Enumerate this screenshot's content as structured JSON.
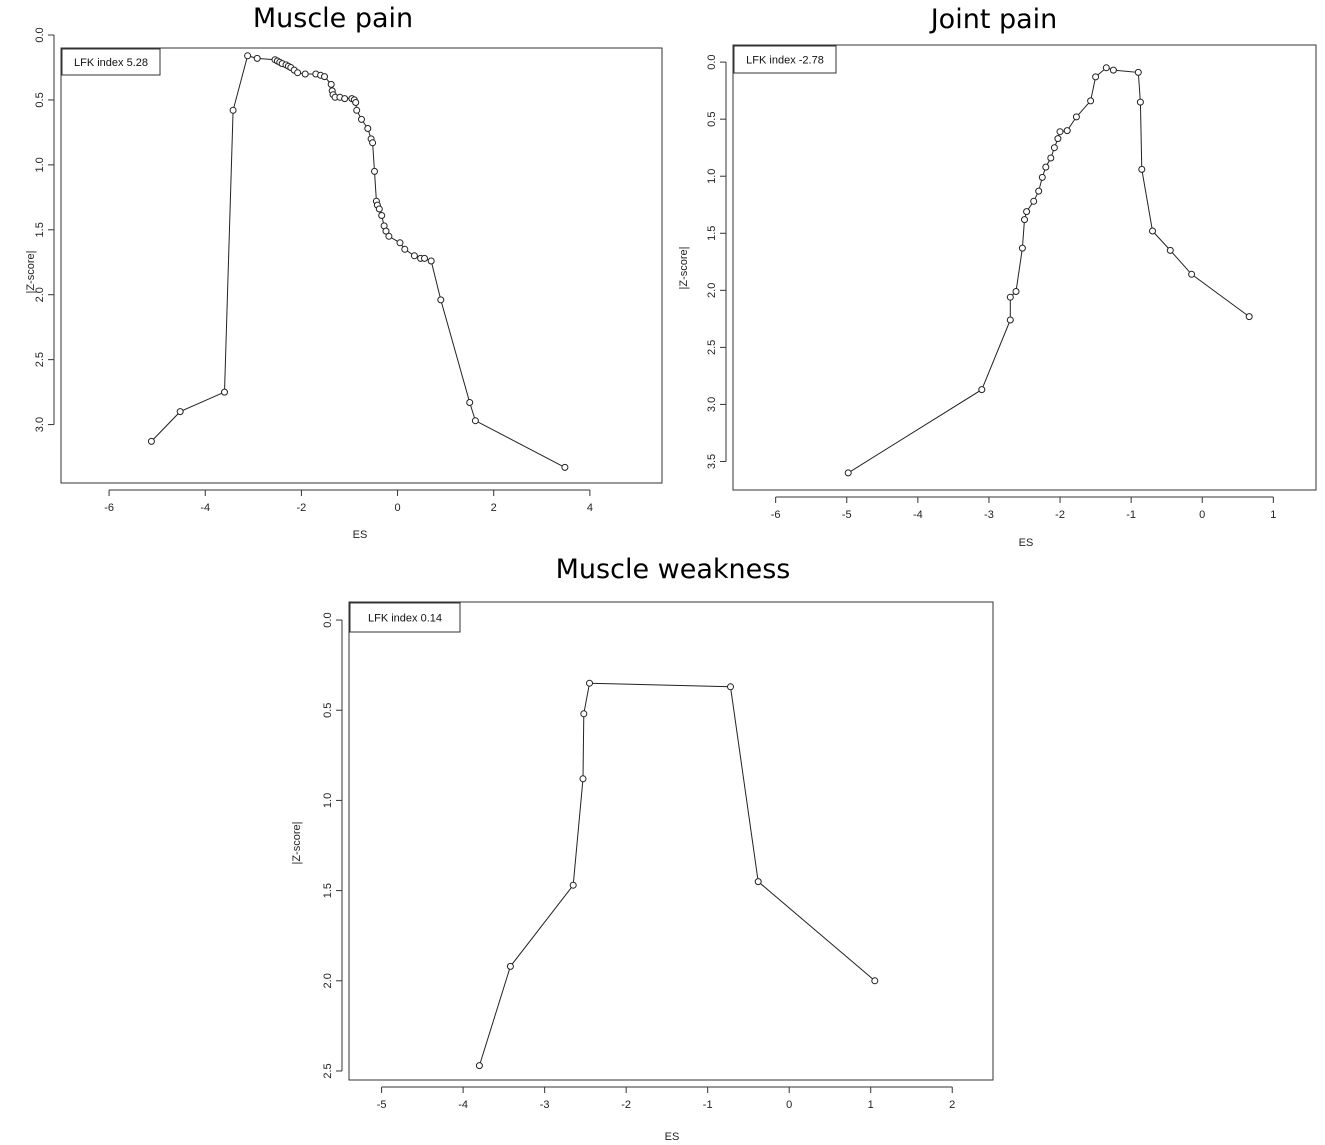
{
  "chart_data": [
    {
      "type": "line",
      "title": "Muscle pain",
      "xlabel": "ES",
      "ylabel": "|Z-score|",
      "legend_text": "LFK index 5.28",
      "legend_position": "top-left",
      "xlim": [
        -7,
        5.5
      ],
      "ylim": [
        0.1,
        3.45
      ],
      "y_reversed": true,
      "x_ticks": [
        -6,
        -4,
        -2,
        0,
        2,
        4
      ],
      "x_tick_labels": [
        "-6",
        "-4",
        "-2",
        "0",
        "2",
        "4"
      ],
      "y_ticks": [
        0.0,
        0.5,
        1.0,
        1.5,
        2.0,
        2.5,
        3.0
      ],
      "y_tick_labels": [
        "0.0",
        "0.5",
        "1.0",
        "1.5",
        "2.0",
        "2.5",
        "3.0"
      ],
      "markers": "open-circle",
      "grid": false,
      "x": [
        -5.12,
        -4.52,
        -3.6,
        -3.42,
        -3.12,
        -2.92,
        -2.55,
        -2.5,
        -2.45,
        -2.4,
        -2.32,
        -2.27,
        -2.22,
        -2.15,
        -2.08,
        -1.92,
        -1.7,
        -1.6,
        -1.52,
        -1.38,
        -1.36,
        -1.34,
        -1.3,
        -1.2,
        -1.1,
        -0.95,
        -0.9,
        -0.87,
        -0.85,
        -0.75,
        -0.62,
        -0.55,
        -0.52,
        -0.48,
        -0.44,
        -0.42,
        -0.38,
        -0.33,
        -0.28,
        -0.24,
        -0.18,
        0.05,
        0.15,
        0.35,
        0.48,
        0.56,
        0.7,
        0.9,
        1.5,
        1.62,
        3.48
      ],
      "y": [
        3.13,
        2.9,
        2.75,
        0.58,
        0.16,
        0.18,
        0.19,
        0.2,
        0.21,
        0.22,
        0.23,
        0.24,
        0.25,
        0.27,
        0.29,
        0.3,
        0.3,
        0.31,
        0.32,
        0.38,
        0.43,
        0.46,
        0.48,
        0.48,
        0.49,
        0.49,
        0.5,
        0.52,
        0.58,
        0.65,
        0.72,
        0.8,
        0.83,
        1.05,
        1.28,
        1.31,
        1.34,
        1.39,
        1.47,
        1.51,
        1.55,
        1.6,
        1.65,
        1.7,
        1.72,
        1.72,
        1.74,
        2.04,
        2.83,
        2.97,
        3.33
      ]
    },
    {
      "type": "line",
      "title": "Joint pain",
      "xlabel": "ES",
      "ylabel": "|Z-score|",
      "legend_text": "LFK index -2.78",
      "legend_position": "top-left",
      "xlim": [
        -6.6,
        1.6
      ],
      "ylim": [
        -0.15,
        3.75
      ],
      "y_reversed": true,
      "x_ticks": [
        -6,
        -5,
        -4,
        -3,
        -2,
        -1,
        0,
        1
      ],
      "x_tick_labels": [
        "-6",
        "-5",
        "-4",
        "-3",
        "-2",
        "-1",
        "0",
        "1"
      ],
      "y_ticks": [
        0.0,
        0.5,
        1.0,
        1.5,
        2.0,
        2.5,
        3.0,
        3.5
      ],
      "y_tick_labels": [
        "0.0",
        "0.5",
        "1.0",
        "1.5",
        "2.0",
        "2.5",
        "3.0",
        "3.5"
      ],
      "markers": "open-circle",
      "grid": false,
      "x": [
        -4.98,
        -3.1,
        -2.7,
        -2.7,
        -2.62,
        -2.53,
        -2.5,
        -2.47,
        -2.37,
        -2.3,
        -2.25,
        -2.2,
        -2.13,
        -2.08,
        -2.03,
        -2.0,
        -1.9,
        -1.77,
        -1.57,
        -1.5,
        -1.35,
        -1.25,
        -0.9,
        -0.87,
        -0.85,
        -0.7,
        -0.45,
        -0.15,
        0.66
      ],
      "y": [
        3.6,
        2.87,
        2.26,
        2.06,
        2.01,
        1.63,
        1.38,
        1.31,
        1.22,
        1.13,
        1.01,
        0.92,
        0.84,
        0.75,
        0.67,
        0.61,
        0.6,
        0.48,
        0.34,
        0.13,
        0.05,
        0.07,
        0.09,
        0.35,
        0.94,
        1.48,
        1.65,
        1.86,
        2.23
      ]
    },
    {
      "type": "line",
      "title": "Muscle weakness",
      "xlabel": "ES",
      "ylabel": "|Z-score|",
      "legend_text": "LFK index 0.14",
      "legend_position": "top-left",
      "xlim": [
        -5.4,
        2.5
      ],
      "ylim": [
        -0.1,
        2.55
      ],
      "y_reversed": true,
      "x_ticks": [
        -5,
        -4,
        -3,
        -2,
        -1,
        0,
        1,
        2
      ],
      "x_tick_labels": [
        "-5",
        "-4",
        "-3",
        "-2",
        "-1",
        "0",
        "1",
        "2"
      ],
      "y_ticks": [
        0.0,
        0.5,
        1.0,
        1.5,
        2.0,
        2.5
      ],
      "y_tick_labels": [
        "0.0",
        "0.5",
        "1.0",
        "1.5",
        "2.0",
        "2.5"
      ],
      "markers": "open-circle",
      "grid": false,
      "x": [
        -3.8,
        -3.42,
        -2.65,
        -2.53,
        -2.52,
        -2.45,
        -0.72,
        -0.38,
        1.05
      ],
      "y": [
        2.47,
        1.92,
        1.47,
        0.88,
        0.52,
        0.35,
        0.37,
        1.45,
        2.0
      ]
    }
  ]
}
